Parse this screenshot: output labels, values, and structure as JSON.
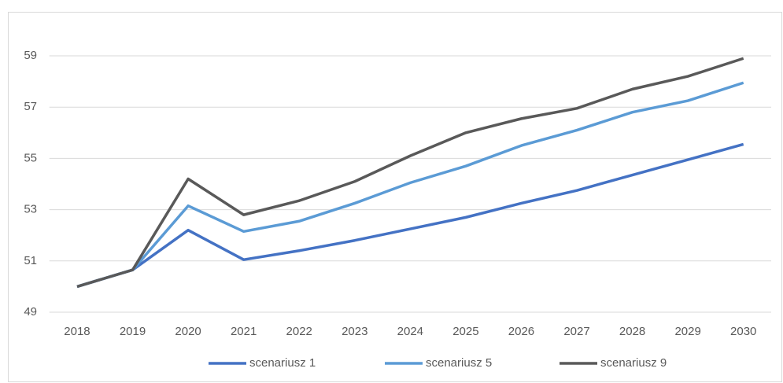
{
  "chart_data": {
    "type": "line",
    "categories": [
      "2018",
      "2019",
      "2020",
      "2021",
      "2022",
      "2023",
      "2024",
      "2025",
      "2026",
      "2027",
      "2028",
      "2029",
      "2030"
    ],
    "series": [
      {
        "name": "scenariusz 1",
        "color": "#4472c4",
        "values": [
          50.0,
          50.65,
          52.2,
          51.05,
          51.4,
          51.8,
          52.25,
          52.7,
          53.25,
          53.75,
          54.35,
          54.95,
          55.55
        ]
      },
      {
        "name": "scenariusz 5",
        "color": "#5b9bd5",
        "values": [
          50.0,
          50.65,
          53.15,
          52.15,
          52.55,
          53.25,
          54.05,
          54.7,
          55.5,
          56.1,
          56.8,
          57.25,
          57.95
        ]
      },
      {
        "name": "scenariusz 9",
        "color": "#595959",
        "values": [
          50.0,
          50.65,
          54.2,
          52.8,
          53.35,
          54.1,
          55.1,
          56.0,
          56.55,
          56.95,
          57.7,
          58.2,
          58.9
        ]
      }
    ],
    "ylim": [
      49,
      60
    ],
    "yticks": [
      49,
      51,
      53,
      55,
      57,
      59
    ],
    "grid": true,
    "legend": "bottom"
  }
}
